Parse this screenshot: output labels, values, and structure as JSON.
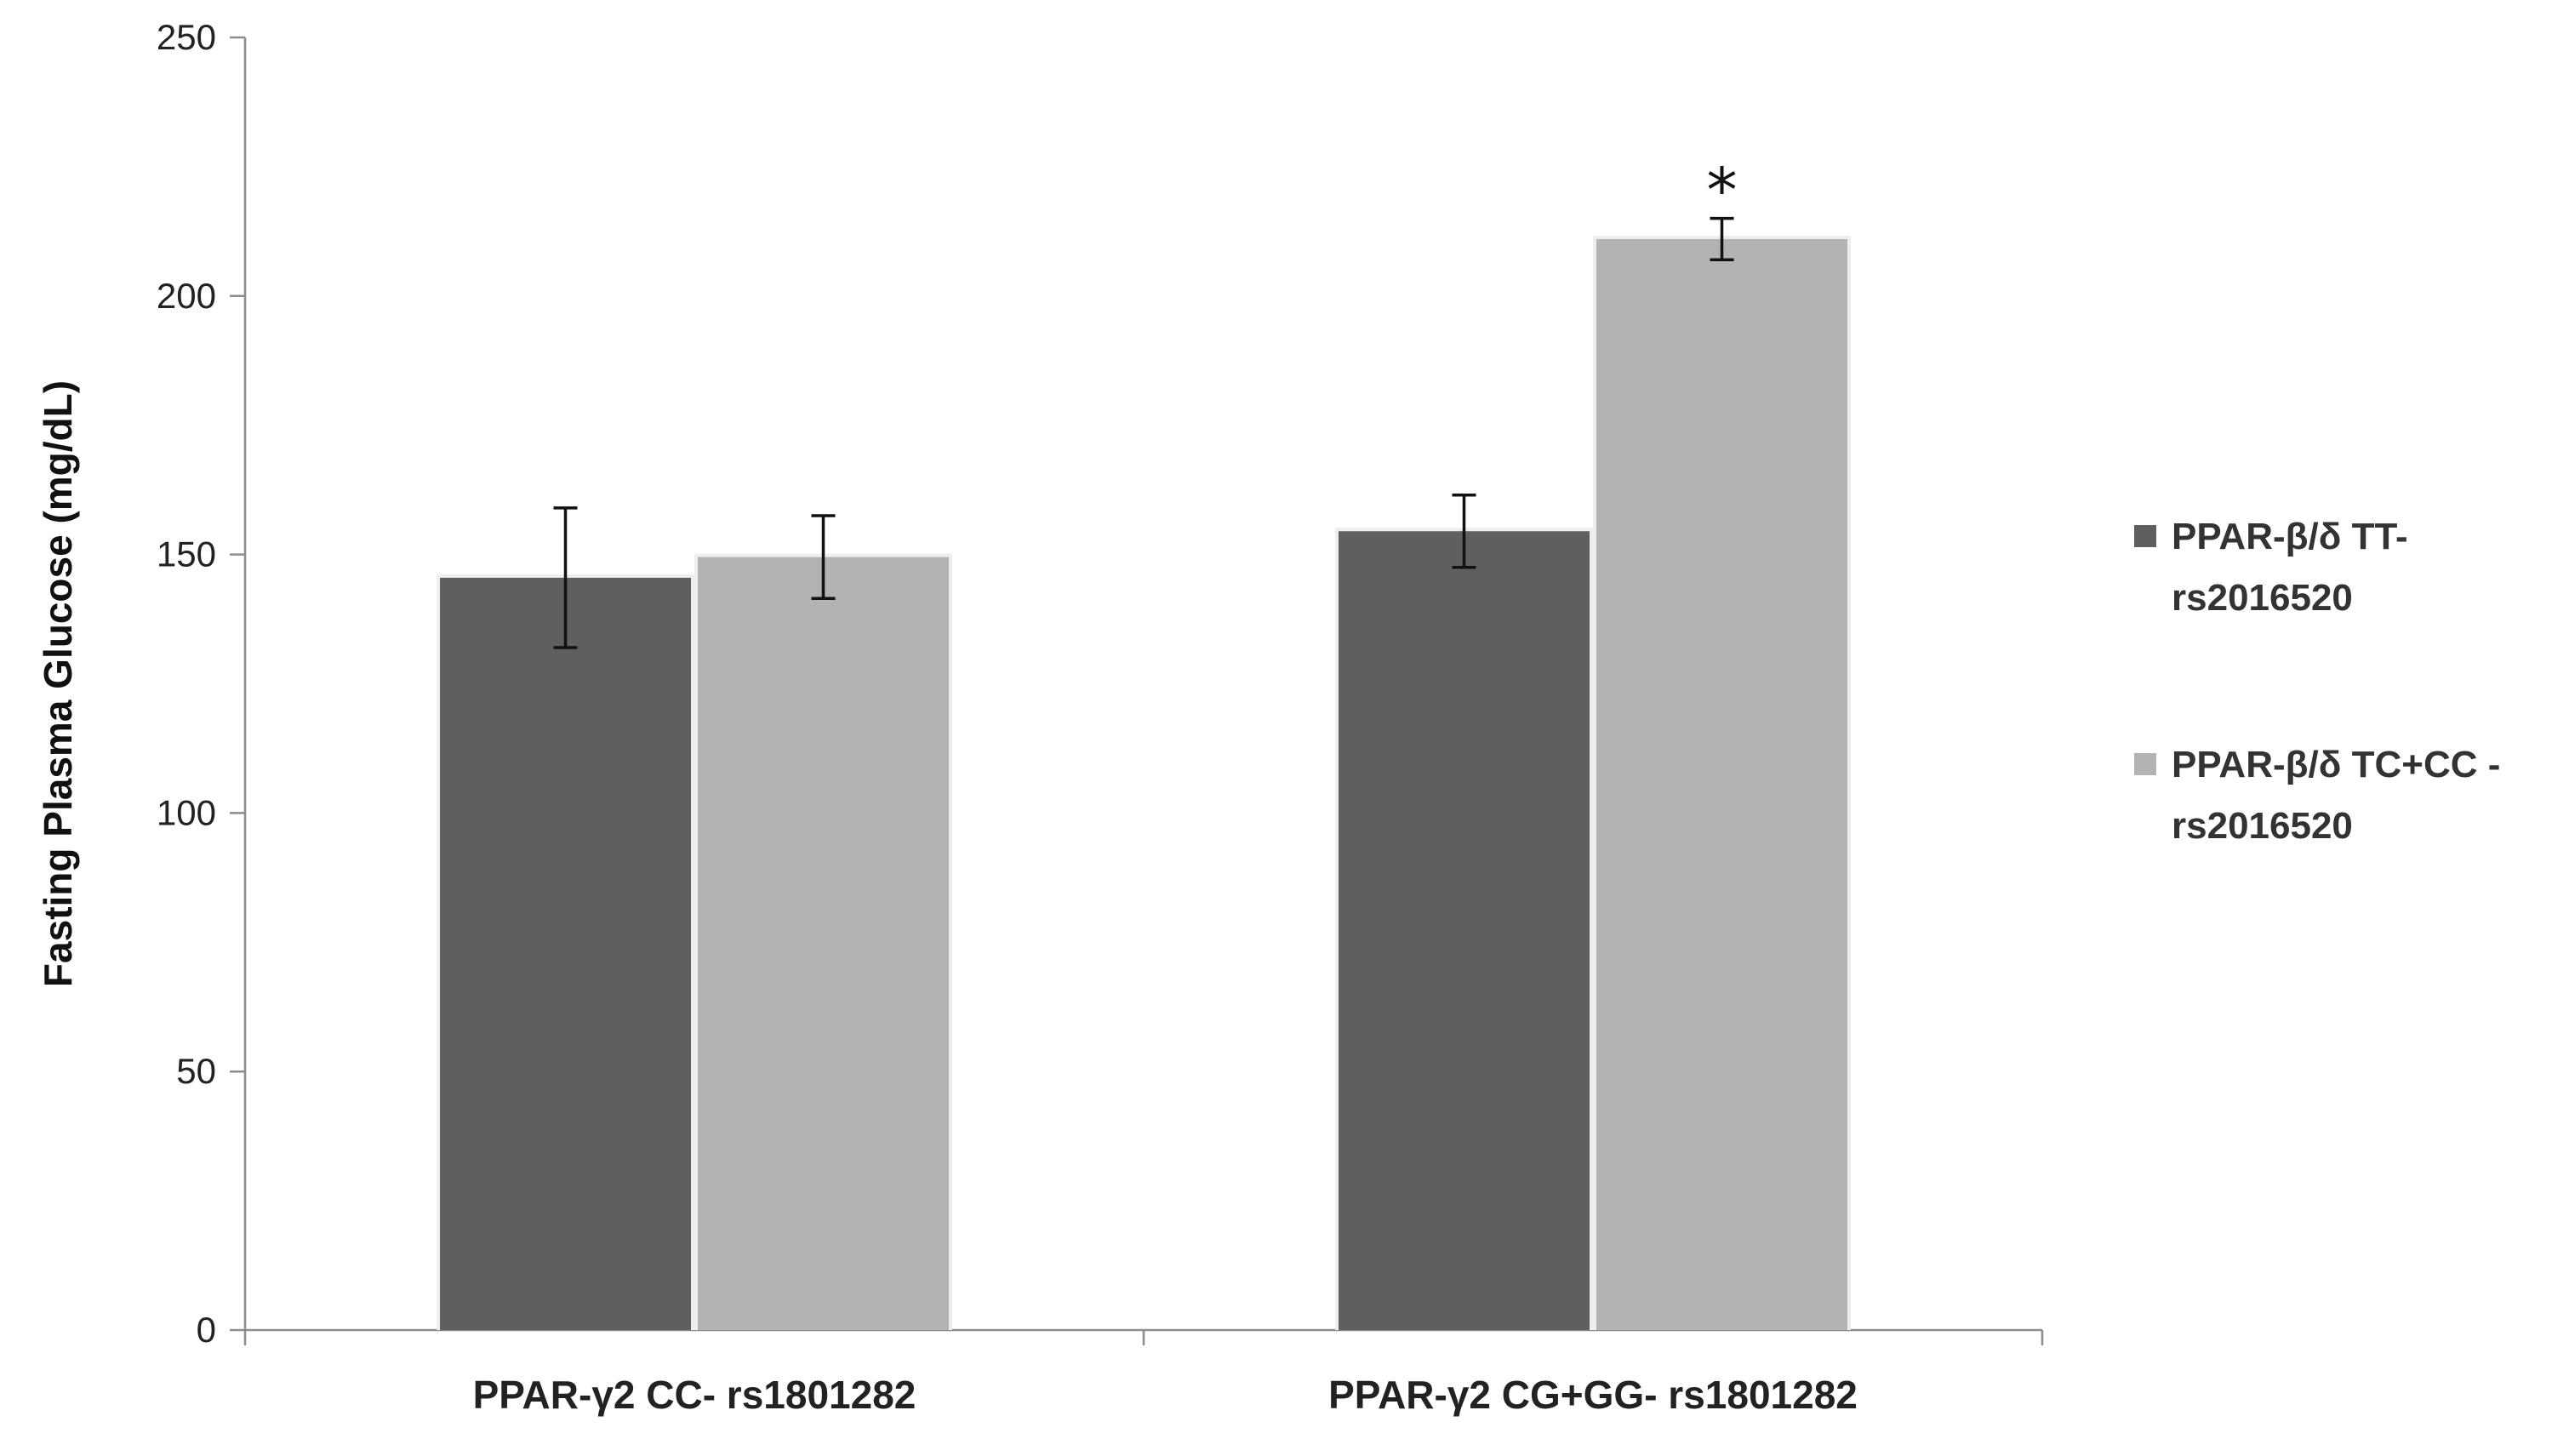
{
  "chart_data": {
    "type": "bar",
    "title": "",
    "xlabel": "",
    "ylabel": "Fasting Plasma Glucose  (mg/dL)",
    "ylim": [
      0,
      250
    ],
    "yticks": [
      0,
      50,
      100,
      150,
      200,
      250
    ],
    "categories": [
      "PPAR-γ2 CC- rs1801282",
      "PPAR-γ2 CG+GG- rs1801282"
    ],
    "series": [
      {
        "name": "PPAR-β/δ TT- rs2016520",
        "legend_lines": [
          "PPAR-β/δ TT-",
          "rs2016520"
        ],
        "color": "#5f5f5f",
        "values": [
          145.5,
          154.5
        ],
        "error": [
          13.5,
          7
        ]
      },
      {
        "name": "PPAR-β/δ TC+CC - rs2016520",
        "legend_lines": [
          "PPAR-β/δ TC+CC -",
          "rs2016520"
        ],
        "color": "#b3b3b3",
        "values": [
          149.5,
          211
        ],
        "error": [
          8,
          4
        ]
      }
    ],
    "annotations": [
      {
        "text": "*",
        "category_index": 1,
        "series_index": 1
      }
    ],
    "grid": false,
    "legend_position": "right"
  }
}
